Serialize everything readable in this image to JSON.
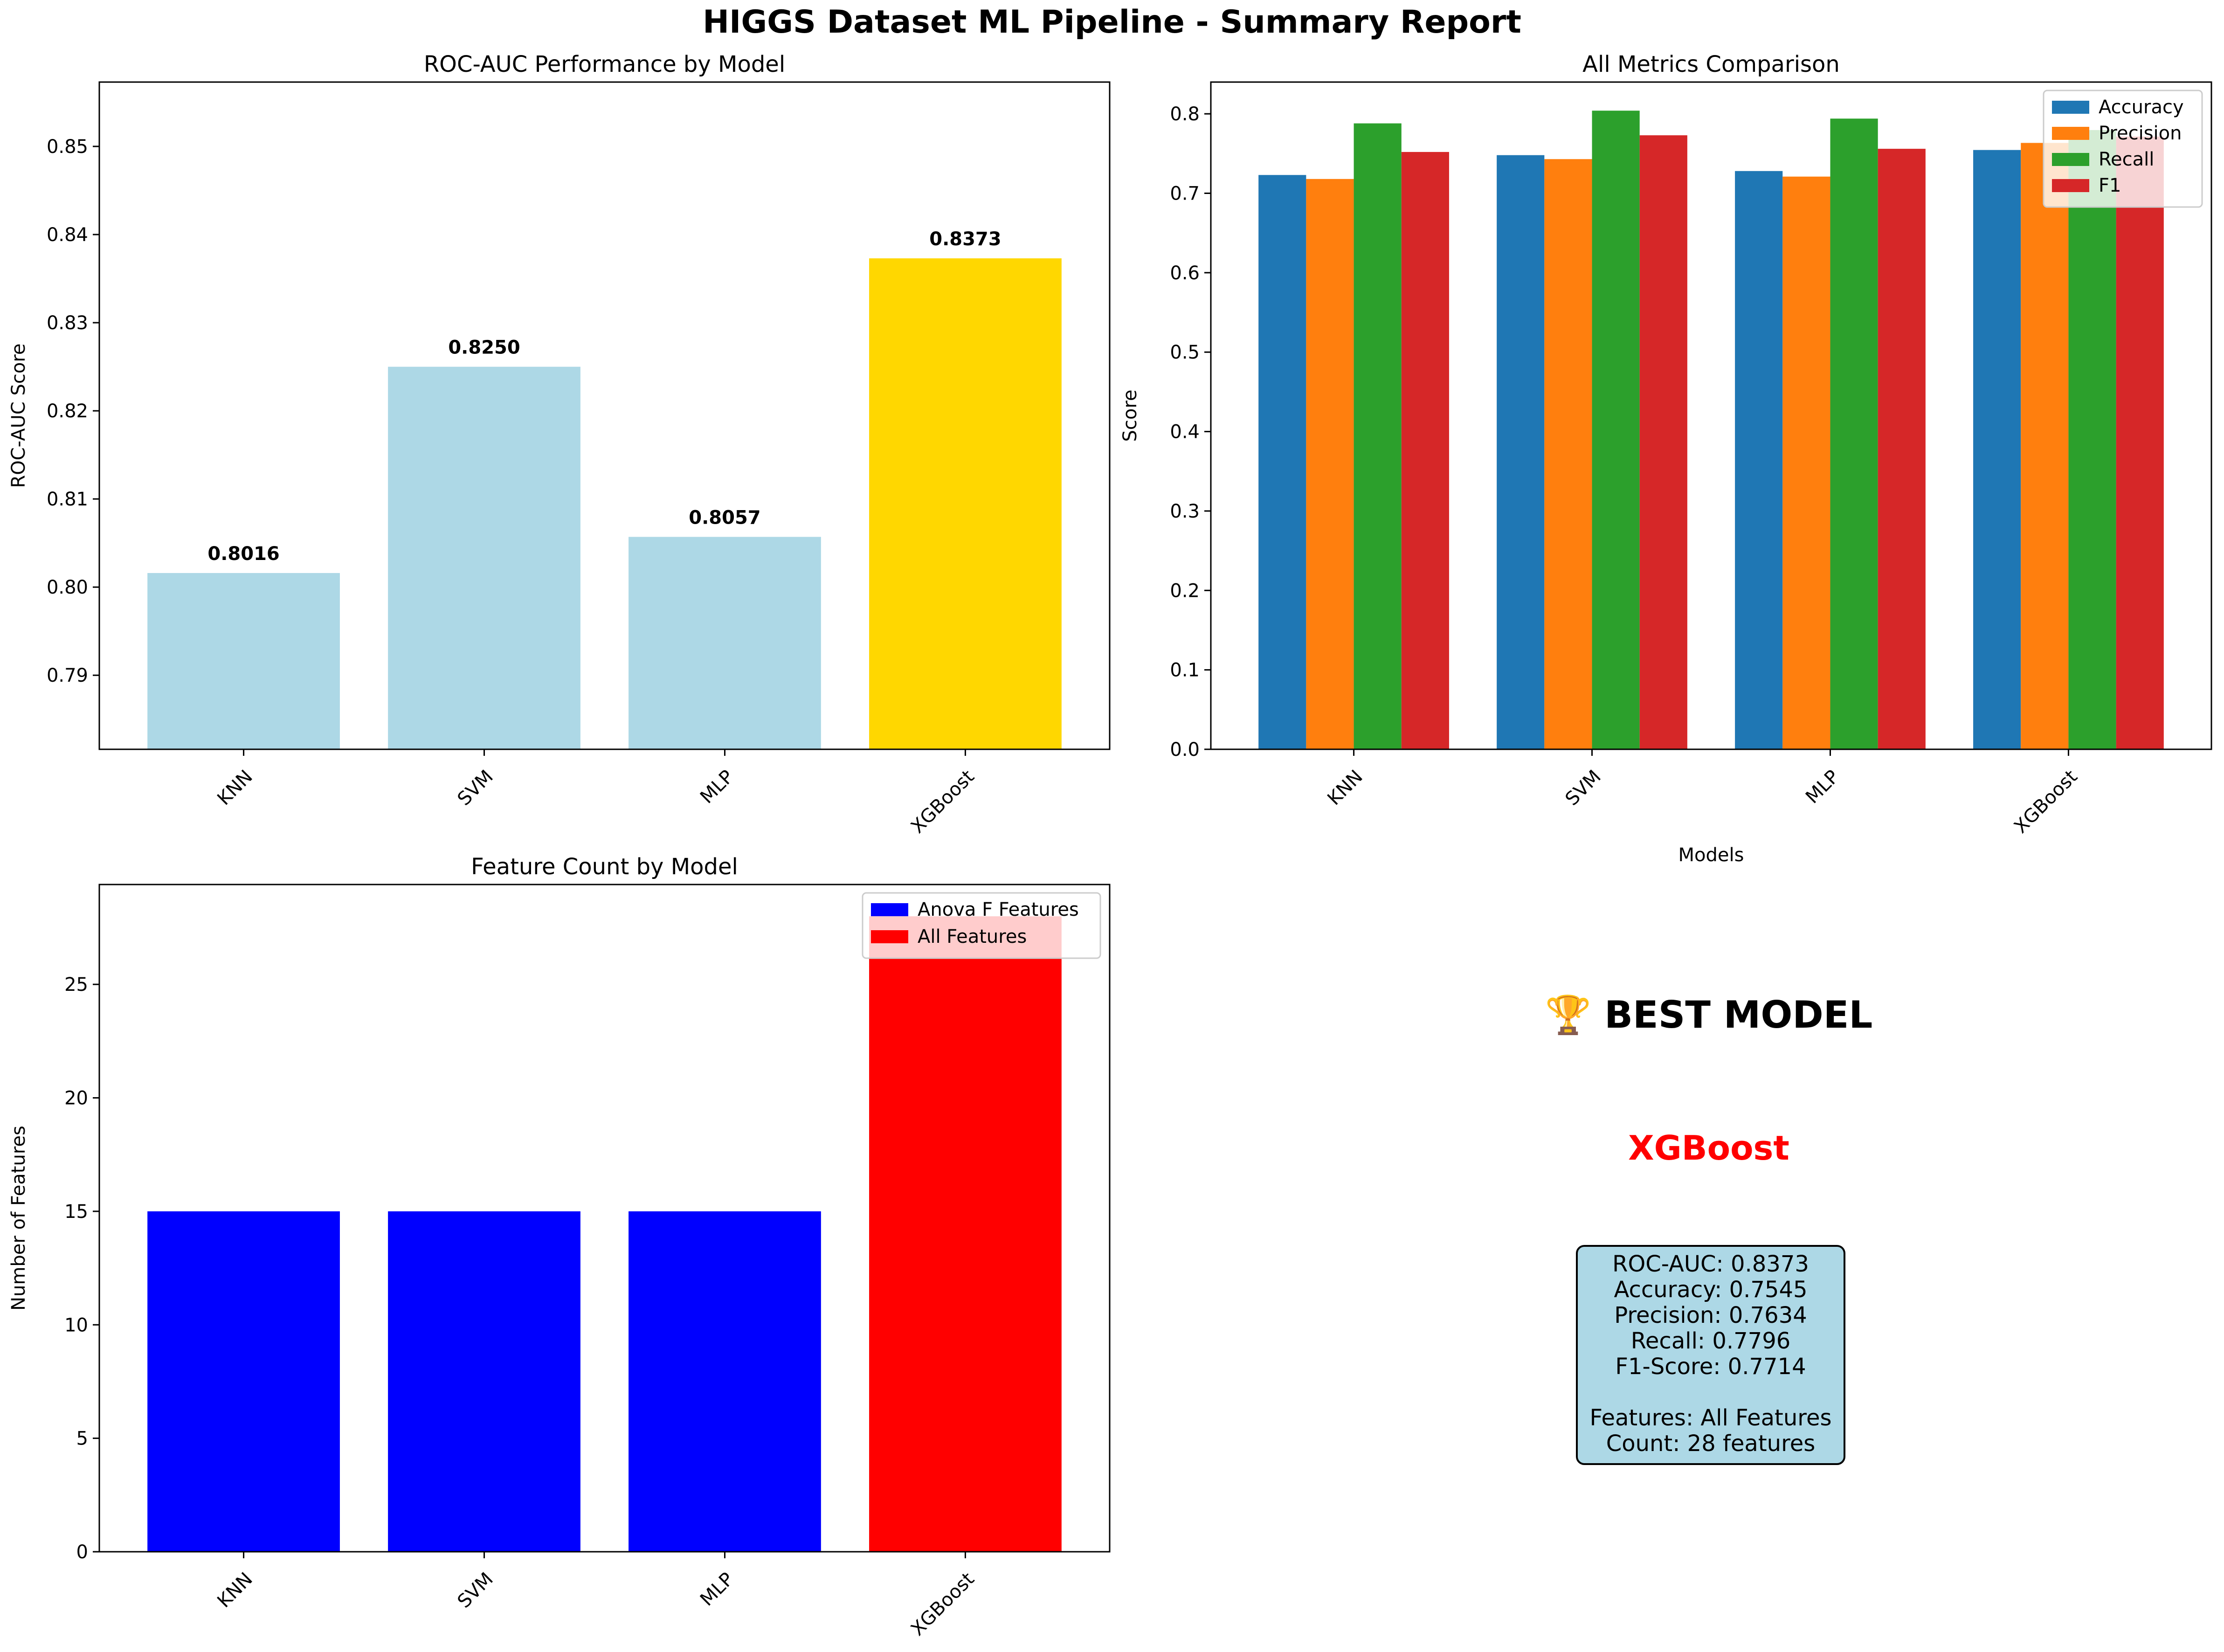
{
  "title": "HIGGS Dataset ML Pipeline - Summary Report",
  "colors": {
    "bar_default": "#add8e6",
    "bar_best": "#ffd700",
    "accuracy": "#1f77b4",
    "precision": "#ff7f0e",
    "recall": "#2ca02c",
    "f1": "#d62728",
    "anova": "#0000ff",
    "all_features": "#ff0000",
    "best_name": "#ff0000",
    "box_bg": "#add8e6"
  },
  "chart_data": [
    {
      "id": "roc",
      "type": "bar",
      "title": "ROC-AUC Performance by Model",
      "xlabel": "",
      "ylabel": "ROC-AUC Score",
      "categories": [
        "KNN",
        "SVM",
        "MLP",
        "XGBoost"
      ],
      "values": [
        0.8016,
        0.825,
        0.8057,
        0.8373
      ],
      "value_labels": [
        "0.8016",
        "0.8250",
        "0.8057",
        "0.8373"
      ],
      "highlight": "XGBoost",
      "ylim": [
        0.7816,
        0.8573
      ],
      "yticks": [
        0.79,
        0.8,
        0.81,
        0.82,
        0.83,
        0.84,
        0.85
      ],
      "ytick_labels": [
        "0.79",
        "0.80",
        "0.81",
        "0.82",
        "0.83",
        "0.84",
        "0.85"
      ],
      "grid": false
    },
    {
      "id": "metrics",
      "type": "bar",
      "title": "All Metrics Comparison",
      "xlabel": "Models",
      "ylabel": "Score",
      "categories": [
        "KNN",
        "SVM",
        "MLP",
        "XGBoost"
      ],
      "series": [
        {
          "name": "Accuracy",
          "values": [
            0.723,
            0.748,
            0.728,
            0.7545
          ]
        },
        {
          "name": "Precision",
          "values": [
            0.718,
            0.743,
            0.721,
            0.7634
          ]
        },
        {
          "name": "Recall",
          "values": [
            0.788,
            0.804,
            0.794,
            0.7796
          ]
        },
        {
          "name": "F1",
          "values": [
            0.752,
            0.773,
            0.756,
            0.7714
          ]
        }
      ],
      "ylim": [
        0,
        0.84
      ],
      "yticks": [
        0.0,
        0.1,
        0.2,
        0.3,
        0.4,
        0.5,
        0.6,
        0.7,
        0.8
      ],
      "ytick_labels": [
        "0.0",
        "0.1",
        "0.2",
        "0.3",
        "0.4",
        "0.5",
        "0.6",
        "0.7",
        "0.8"
      ],
      "legend": "top-right",
      "grid": false
    },
    {
      "id": "features",
      "type": "bar",
      "title": "Feature Count by Model",
      "xlabel": "",
      "ylabel": "Number of Features",
      "categories": [
        "KNN",
        "SVM",
        "MLP",
        "XGBoost"
      ],
      "values": [
        15,
        15,
        15,
        28
      ],
      "groups": [
        "Anova F Features",
        "Anova F Features",
        "Anova F Features",
        "All Features"
      ],
      "legend_entries": [
        "Anova F Features",
        "All Features"
      ],
      "ylim": [
        0,
        29.4
      ],
      "yticks": [
        0,
        5,
        10,
        15,
        20,
        25
      ],
      "ytick_labels": [
        "0",
        "5",
        "10",
        "15",
        "20",
        "25"
      ],
      "legend": "top-right",
      "grid": false
    }
  ],
  "best_model": {
    "heading": "🏆 BEST MODEL",
    "name": "XGBoost",
    "lines": [
      "ROC-AUC: 0.8373",
      "Accuracy: 0.7545",
      "Precision: 0.7634",
      "Recall: 0.7796",
      "F1-Score: 0.7714",
      "",
      "Features: All Features",
      "Count: 28 features"
    ]
  }
}
